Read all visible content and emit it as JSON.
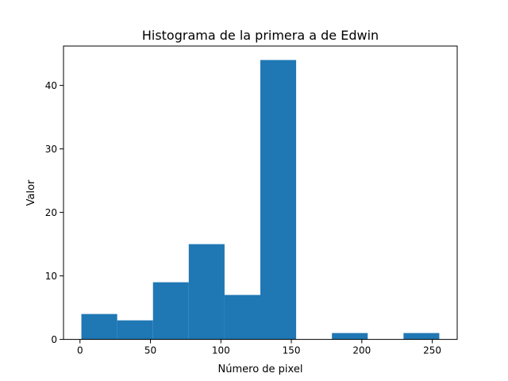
{
  "chart_data": {
    "type": "bar",
    "title": "Histograma de la primera a de Edwin",
    "xlabel": "Número de pixel",
    "ylabel": "Valor",
    "bins": [
      {
        "start": 1.0,
        "end": 26.4,
        "count": 4
      },
      {
        "start": 26.4,
        "end": 51.8,
        "count": 3
      },
      {
        "start": 51.8,
        "end": 77.2,
        "count": 9
      },
      {
        "start": 77.2,
        "end": 102.6,
        "count": 15
      },
      {
        "start": 102.6,
        "end": 128.0,
        "count": 7
      },
      {
        "start": 128.0,
        "end": 153.4,
        "count": 44
      },
      {
        "start": 153.4,
        "end": 178.8,
        "count": 0
      },
      {
        "start": 178.8,
        "end": 204.2,
        "count": 1
      },
      {
        "start": 204.2,
        "end": 229.6,
        "count": 0
      },
      {
        "start": 229.6,
        "end": 255.0,
        "count": 1
      }
    ],
    "xlim": [
      -11.7,
      267.7
    ],
    "ylim": [
      0,
      46.2
    ],
    "xticks": [
      0,
      50,
      100,
      150,
      200,
      250
    ],
    "yticks": [
      0,
      10,
      20,
      30,
      40
    ],
    "bar_color": "#1f77b4",
    "grid": false,
    "legend": "none"
  }
}
